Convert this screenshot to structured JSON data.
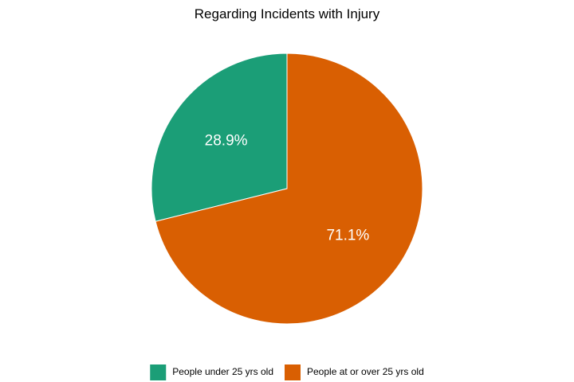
{
  "chart_data": {
    "type": "pie",
    "title": "Regarding Incidents with Injury",
    "slices": [
      {
        "label": "People under 25 yrs old",
        "value": 28.9,
        "value_label": "28.9%",
        "color": "#1b9e77"
      },
      {
        "label": "People at or over 25 yrs old",
        "value": 71.1,
        "value_label": "71.1%",
        "color": "#d95f02"
      }
    ],
    "legend_position": "bottom",
    "start_angle": "top",
    "direction": "counterclockwise"
  }
}
